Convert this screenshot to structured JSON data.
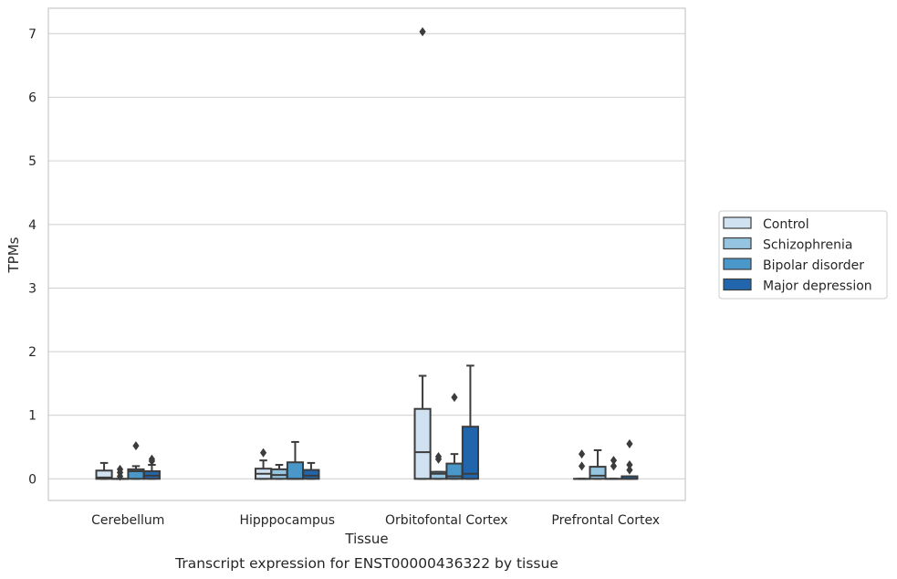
{
  "chart_data": {
    "type": "box",
    "title": "",
    "caption": "Transcript expression for ENST00000436322 by tissue",
    "xlabel": "Tissue",
    "ylabel": "TPMs",
    "ylim": [
      -0.34,
      7.4
    ],
    "yticks": [
      0,
      1,
      2,
      3,
      4,
      5,
      6,
      7
    ],
    "grid": "horizontal",
    "legend_position": "right",
    "categories": [
      "Cerebellum",
      "Hipppocampus",
      "Orbitofontal Cortex",
      "Prefrontal Cortex"
    ],
    "series": [
      {
        "name": "Control",
        "color": "#d0e1f2",
        "boxes": [
          {
            "min": 0,
            "q1": 0,
            "median": 0.02,
            "q3": 0.13,
            "max": 0.25,
            "outliers": []
          },
          {
            "min": 0,
            "q1": 0,
            "median": 0.08,
            "q3": 0.16,
            "max": 0.29,
            "outliers": [
              0.41
            ]
          },
          {
            "min": 0,
            "q1": 0,
            "median": 0.42,
            "q3": 1.1,
            "max": 1.62,
            "outliers": [
              7.03
            ]
          },
          {
            "min": 0,
            "q1": 0,
            "median": 0,
            "q3": 0,
            "max": 0,
            "outliers": [
              0.2,
              0.39
            ]
          }
        ]
      },
      {
        "name": "Schizophrenia",
        "color": "#94c4df",
        "boxes": [
          {
            "min": 0,
            "q1": 0,
            "median": 0,
            "q3": 0,
            "max": 0,
            "outliers": [
              0.04,
              0.1,
              0.15
            ]
          },
          {
            "min": 0,
            "q1": 0,
            "median": 0.06,
            "q3": 0.15,
            "max": 0.22,
            "outliers": []
          },
          {
            "min": 0,
            "q1": 0,
            "median": 0.08,
            "q3": 0.11,
            "max": 0.11,
            "outliers": [
              0.31,
              0.35
            ]
          },
          {
            "min": 0,
            "q1": 0,
            "median": 0.05,
            "q3": 0.19,
            "max": 0.45,
            "outliers": []
          }
        ]
      },
      {
        "name": "Bipolar disorder",
        "color": "#4a98c9",
        "boxes": [
          {
            "min": 0,
            "q1": 0,
            "median": 0.12,
            "q3": 0.15,
            "max": 0.2,
            "outliers": [
              0.52
            ]
          },
          {
            "min": 0,
            "q1": 0,
            "median": 0,
            "q3": 0.26,
            "max": 0.58,
            "outliers": []
          },
          {
            "min": 0,
            "q1": 0,
            "median": 0.04,
            "q3": 0.24,
            "max": 0.39,
            "outliers": [
              1.28
            ]
          },
          {
            "min": 0,
            "q1": 0,
            "median": 0,
            "q3": 0,
            "max": 0,
            "outliers": [
              0.2,
              0.29
            ]
          }
        ]
      },
      {
        "name": "Major depression",
        "color": "#2166ac",
        "boxes": [
          {
            "min": 0,
            "q1": 0,
            "median": 0.05,
            "q3": 0.12,
            "max": 0.22,
            "outliers": [
              0.28,
              0.31
            ]
          },
          {
            "min": 0,
            "q1": 0,
            "median": 0.05,
            "q3": 0.14,
            "max": 0.25,
            "outliers": []
          },
          {
            "min": 0,
            "q1": 0,
            "median": 0.08,
            "q3": 0.82,
            "max": 1.78,
            "outliers": []
          },
          {
            "min": 0,
            "q1": 0,
            "median": 0,
            "q3": 0.04,
            "max": 0.04,
            "outliers": [
              0.14,
              0.22,
              0.55
            ]
          }
        ]
      }
    ]
  }
}
